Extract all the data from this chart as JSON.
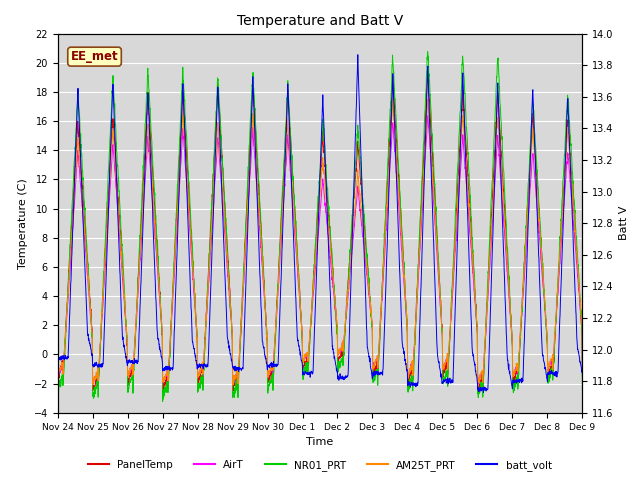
{
  "title": "Temperature and Batt V",
  "xlabel": "Time",
  "ylabel_left": "Temperature (C)",
  "ylabel_right": "Batt V",
  "ylim_left": [
    -4,
    22
  ],
  "ylim_right": [
    11.6,
    14.0
  ],
  "yticks_left": [
    -4,
    -2,
    0,
    2,
    4,
    6,
    8,
    10,
    12,
    14,
    16,
    18,
    20,
    22
  ],
  "yticks_right": [
    11.6,
    11.8,
    12.0,
    12.2,
    12.4,
    12.6,
    12.8,
    13.0,
    13.2,
    13.4,
    13.6,
    13.8,
    14.0
  ],
  "xtick_labels": [
    "Nov 24",
    "Nov 25",
    "Nov 26",
    "Nov 27",
    "Nov 28",
    "Nov 29",
    "Nov 30",
    "Dec 1",
    "Dec 2",
    "Dec 3",
    "Dec 4",
    "Dec 5",
    "Dec 6",
    "Dec 7",
    "Dec 8",
    "Dec 9"
  ],
  "annotation_text": "EE_met",
  "annotation_color": "#8B0000",
  "annotation_bg": "#FFFFC0",
  "legend_entries": [
    "PanelTemp",
    "AirT",
    "NR01_PRT",
    "AM25T_PRT",
    "batt_volt"
  ],
  "line_colors": {
    "PanelTemp": "#DD0000",
    "AirT": "#FF00FF",
    "NR01_PRT": "#00CC00",
    "AM25T_PRT": "#FF8800",
    "batt_volt": "#0000EE"
  },
  "plot_bg": "#D8D8D8",
  "grid_color": "#FFFFFF"
}
